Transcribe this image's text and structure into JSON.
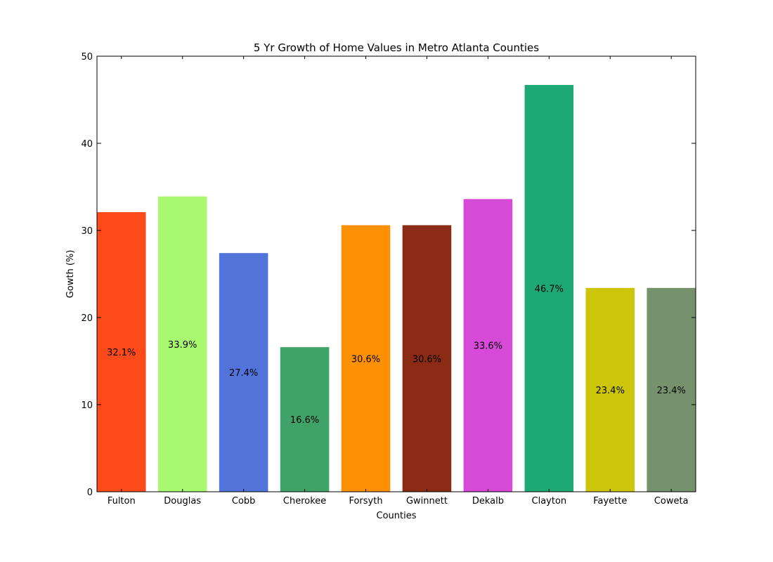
{
  "chart_data": {
    "type": "bar",
    "title": "5 Yr Growth of Home Values in Metro Atlanta Counties",
    "xlabel": "Counties",
    "ylabel": "Gowth (%)",
    "ylim": [
      0,
      50
    ],
    "yticks": [
      "0",
      "10",
      "20",
      "30",
      "40",
      "50"
    ],
    "categories": [
      "Fulton",
      "Douglas",
      "Cobb",
      "Cherokee",
      "Forsyth",
      "Gwinnett",
      "Dekalb",
      "Clayton",
      "Fayette",
      "Coweta"
    ],
    "values": [
      32.1,
      33.9,
      27.4,
      16.6,
      30.6,
      30.6,
      33.6,
      46.7,
      23.4,
      23.4
    ],
    "data_labels": [
      "32.1%",
      "33.9%",
      "27.4%",
      "16.6%",
      "30.6%",
      "30.6%",
      "33.6%",
      "46.7%",
      "23.4%",
      "23.4%"
    ],
    "colors": [
      "#fc4a1a",
      "#a8f96f",
      "#5273d9",
      "#3fa368",
      "#fd9103",
      "#892b15",
      "#d74ad7",
      "#1ea876",
      "#cdc50a",
      "#76926d"
    ],
    "grid": false
  }
}
